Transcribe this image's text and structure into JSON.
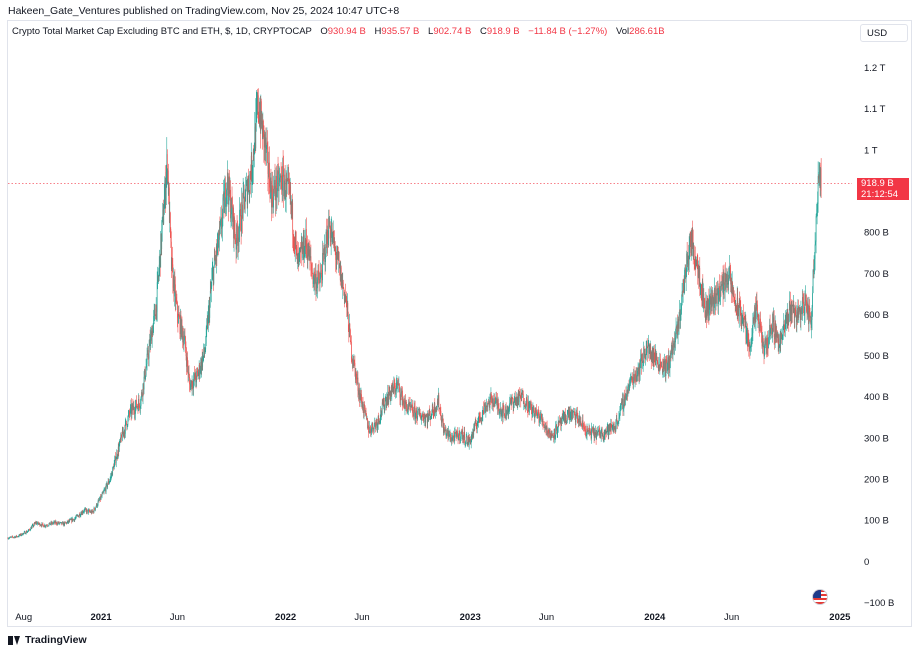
{
  "header": {
    "publish_line": "Hakeen_Gate_Ventures published on TradingView.com, Nov 25, 2024 10:47 UTC+8"
  },
  "legend": {
    "title": "Crypto Total Market Cap Excluding BTC and ETH, $, 1D, CRYPTOCAP",
    "o_label": "O",
    "o_value": "930.94 B",
    "h_label": "H",
    "h_value": "935.57 B",
    "l_label": "L",
    "l_value": "902.74 B",
    "c_label": "C",
    "c_value": "918.9 B",
    "change": "−11.84 B (−1.27%)",
    "vol_label": "Vol",
    "vol_value": "286.61B"
  },
  "toolbar": {
    "currency": "USD"
  },
  "price_tag": {
    "value": "918.9 B",
    "countdown": "21:12:54"
  },
  "footer": {
    "brand": "TradingView"
  },
  "colors": {
    "up": "#26a69a",
    "down": "#ef5350",
    "last_price": "#f23645",
    "grid": "#e0e3eb"
  },
  "icons": {
    "flag": "us-flag-icon",
    "logo": "tradingview-logo-icon"
  },
  "chart_data": {
    "type": "candlestick",
    "title": "Crypto Total Market Cap Excluding BTC and ETH, $, 1D, CRYPTOCAP",
    "y_unit": "USD (billions)",
    "ylim": [
      -100,
      1260
    ],
    "y_ticks": [
      {
        "value": 1200,
        "label": "1.2 T"
      },
      {
        "value": 1100,
        "label": "1.1 T"
      },
      {
        "value": 1000,
        "label": "1 T"
      },
      {
        "value": 800,
        "label": "800 B"
      },
      {
        "value": 700,
        "label": "700 B"
      },
      {
        "value": 600,
        "label": "600 B"
      },
      {
        "value": 500,
        "label": "500 B"
      },
      {
        "value": 400,
        "label": "400 B"
      },
      {
        "value": 300,
        "label": "300 B"
      },
      {
        "value": 200,
        "label": "200 B"
      },
      {
        "value": 100,
        "label": "100 B"
      },
      {
        "value": 0,
        "label": "0"
      },
      {
        "value": -100,
        "label": "−100 B"
      }
    ],
    "x_range": [
      "2020-07-01",
      "2025-01-25"
    ],
    "x_ticks": [
      {
        "date": "2020-08-01",
        "label": "Aug",
        "bold": false
      },
      {
        "date": "2021-01-01",
        "label": "2021",
        "bold": true
      },
      {
        "date": "2021-06-01",
        "label": "Jun",
        "bold": false
      },
      {
        "date": "2022-01-01",
        "label": "2022",
        "bold": true
      },
      {
        "date": "2022-06-01",
        "label": "Jun",
        "bold": false
      },
      {
        "date": "2023-01-01",
        "label": "2023",
        "bold": true
      },
      {
        "date": "2023-06-01",
        "label": "Jun",
        "bold": false
      },
      {
        "date": "2024-01-01",
        "label": "2024",
        "bold": true
      },
      {
        "date": "2024-06-01",
        "label": "Jun",
        "bold": false
      },
      {
        "date": "2025-01-01",
        "label": "2025",
        "bold": true
      }
    ],
    "last_price": 918.9,
    "close_series": [
      [
        "2020-07-01",
        58
      ],
      [
        "2020-07-20",
        62
      ],
      [
        "2020-08-10",
        75
      ],
      [
        "2020-08-25",
        95
      ],
      [
        "2020-09-10",
        88
      ],
      [
        "2020-10-01",
        95
      ],
      [
        "2020-10-20",
        92
      ],
      [
        "2020-11-10",
        105
      ],
      [
        "2020-11-28",
        125
      ],
      [
        "2020-12-15",
        120
      ],
      [
        "2021-01-05",
        165
      ],
      [
        "2021-01-20",
        205
      ],
      [
        "2021-02-10",
        300
      ],
      [
        "2021-02-28",
        365
      ],
      [
        "2021-03-20",
        390
      ],
      [
        "2021-04-05",
        510
      ],
      [
        "2021-04-20",
        620
      ],
      [
        "2021-05-05",
        860
      ],
      [
        "2021-05-12",
        980
      ],
      [
        "2021-05-20",
        720
      ],
      [
        "2021-06-01",
        600
      ],
      [
        "2021-06-15",
        540
      ],
      [
        "2021-06-25",
        430
      ],
      [
        "2021-07-10",
        450
      ],
      [
        "2021-07-25",
        510
      ],
      [
        "2021-08-10",
        700
      ],
      [
        "2021-08-25",
        800
      ],
      [
        "2021-09-07",
        930
      ],
      [
        "2021-09-25",
        780
      ],
      [
        "2021-10-10",
        870
      ],
      [
        "2021-10-25",
        950
      ],
      [
        "2021-11-08",
        1110
      ],
      [
        "2021-11-20",
        1020
      ],
      [
        "2021-12-05",
        890
      ],
      [
        "2021-12-25",
        930
      ],
      [
        "2022-01-10",
        880
      ],
      [
        "2022-01-25",
        720
      ],
      [
        "2022-02-10",
        780
      ],
      [
        "2022-02-25",
        690
      ],
      [
        "2022-03-10",
        680
      ],
      [
        "2022-03-28",
        820
      ],
      [
        "2022-04-15",
        720
      ],
      [
        "2022-04-30",
        640
      ],
      [
        "2022-05-10",
        520
      ],
      [
        "2022-05-25",
        420
      ],
      [
        "2022-06-15",
        320
      ],
      [
        "2022-07-01",
        340
      ],
      [
        "2022-07-20",
        400
      ],
      [
        "2022-08-10",
        430
      ],
      [
        "2022-08-25",
        380
      ],
      [
        "2022-09-15",
        360
      ],
      [
        "2022-10-10",
        350
      ],
      [
        "2022-10-30",
        390
      ],
      [
        "2022-11-10",
        320
      ],
      [
        "2022-11-25",
        300
      ],
      [
        "2022-12-15",
        310
      ],
      [
        "2022-12-30",
        290
      ],
      [
        "2023-01-15",
        340
      ],
      [
        "2023-02-01",
        380
      ],
      [
        "2023-02-15",
        395
      ],
      [
        "2023-03-10",
        360
      ],
      [
        "2023-03-25",
        390
      ],
      [
        "2023-04-15",
        400
      ],
      [
        "2023-05-01",
        370
      ],
      [
        "2023-05-20",
        350
      ],
      [
        "2023-06-10",
        305
      ],
      [
        "2023-06-25",
        330
      ],
      [
        "2023-07-15",
        360
      ],
      [
        "2023-08-01",
        350
      ],
      [
        "2023-08-20",
        315
      ],
      [
        "2023-09-10",
        310
      ],
      [
        "2023-09-30",
        320
      ],
      [
        "2023-10-15",
        330
      ],
      [
        "2023-10-30",
        385
      ],
      [
        "2023-11-15",
        440
      ],
      [
        "2023-12-01",
        470
      ],
      [
        "2023-12-15",
        520
      ],
      [
        "2024-01-05",
        490
      ],
      [
        "2024-01-25",
        470
      ],
      [
        "2024-02-15",
        560
      ],
      [
        "2024-03-01",
        700
      ],
      [
        "2024-03-12",
        780
      ],
      [
        "2024-03-25",
        730
      ],
      [
        "2024-04-10",
        610
      ],
      [
        "2024-04-25",
        640
      ],
      [
        "2024-05-10",
        660
      ],
      [
        "2024-05-25",
        700
      ],
      [
        "2024-06-10",
        620
      ],
      [
        "2024-06-25",
        590
      ],
      [
        "2024-07-05",
        520
      ],
      [
        "2024-07-20",
        610
      ],
      [
        "2024-08-05",
        510
      ],
      [
        "2024-08-20",
        580
      ],
      [
        "2024-09-05",
        530
      ],
      [
        "2024-09-25",
        620
      ],
      [
        "2024-10-10",
        600
      ],
      [
        "2024-10-25",
        630
      ],
      [
        "2024-11-05",
        580
      ],
      [
        "2024-11-12",
        760
      ],
      [
        "2024-11-20",
        960
      ],
      [
        "2024-11-25",
        918.9
      ]
    ]
  }
}
